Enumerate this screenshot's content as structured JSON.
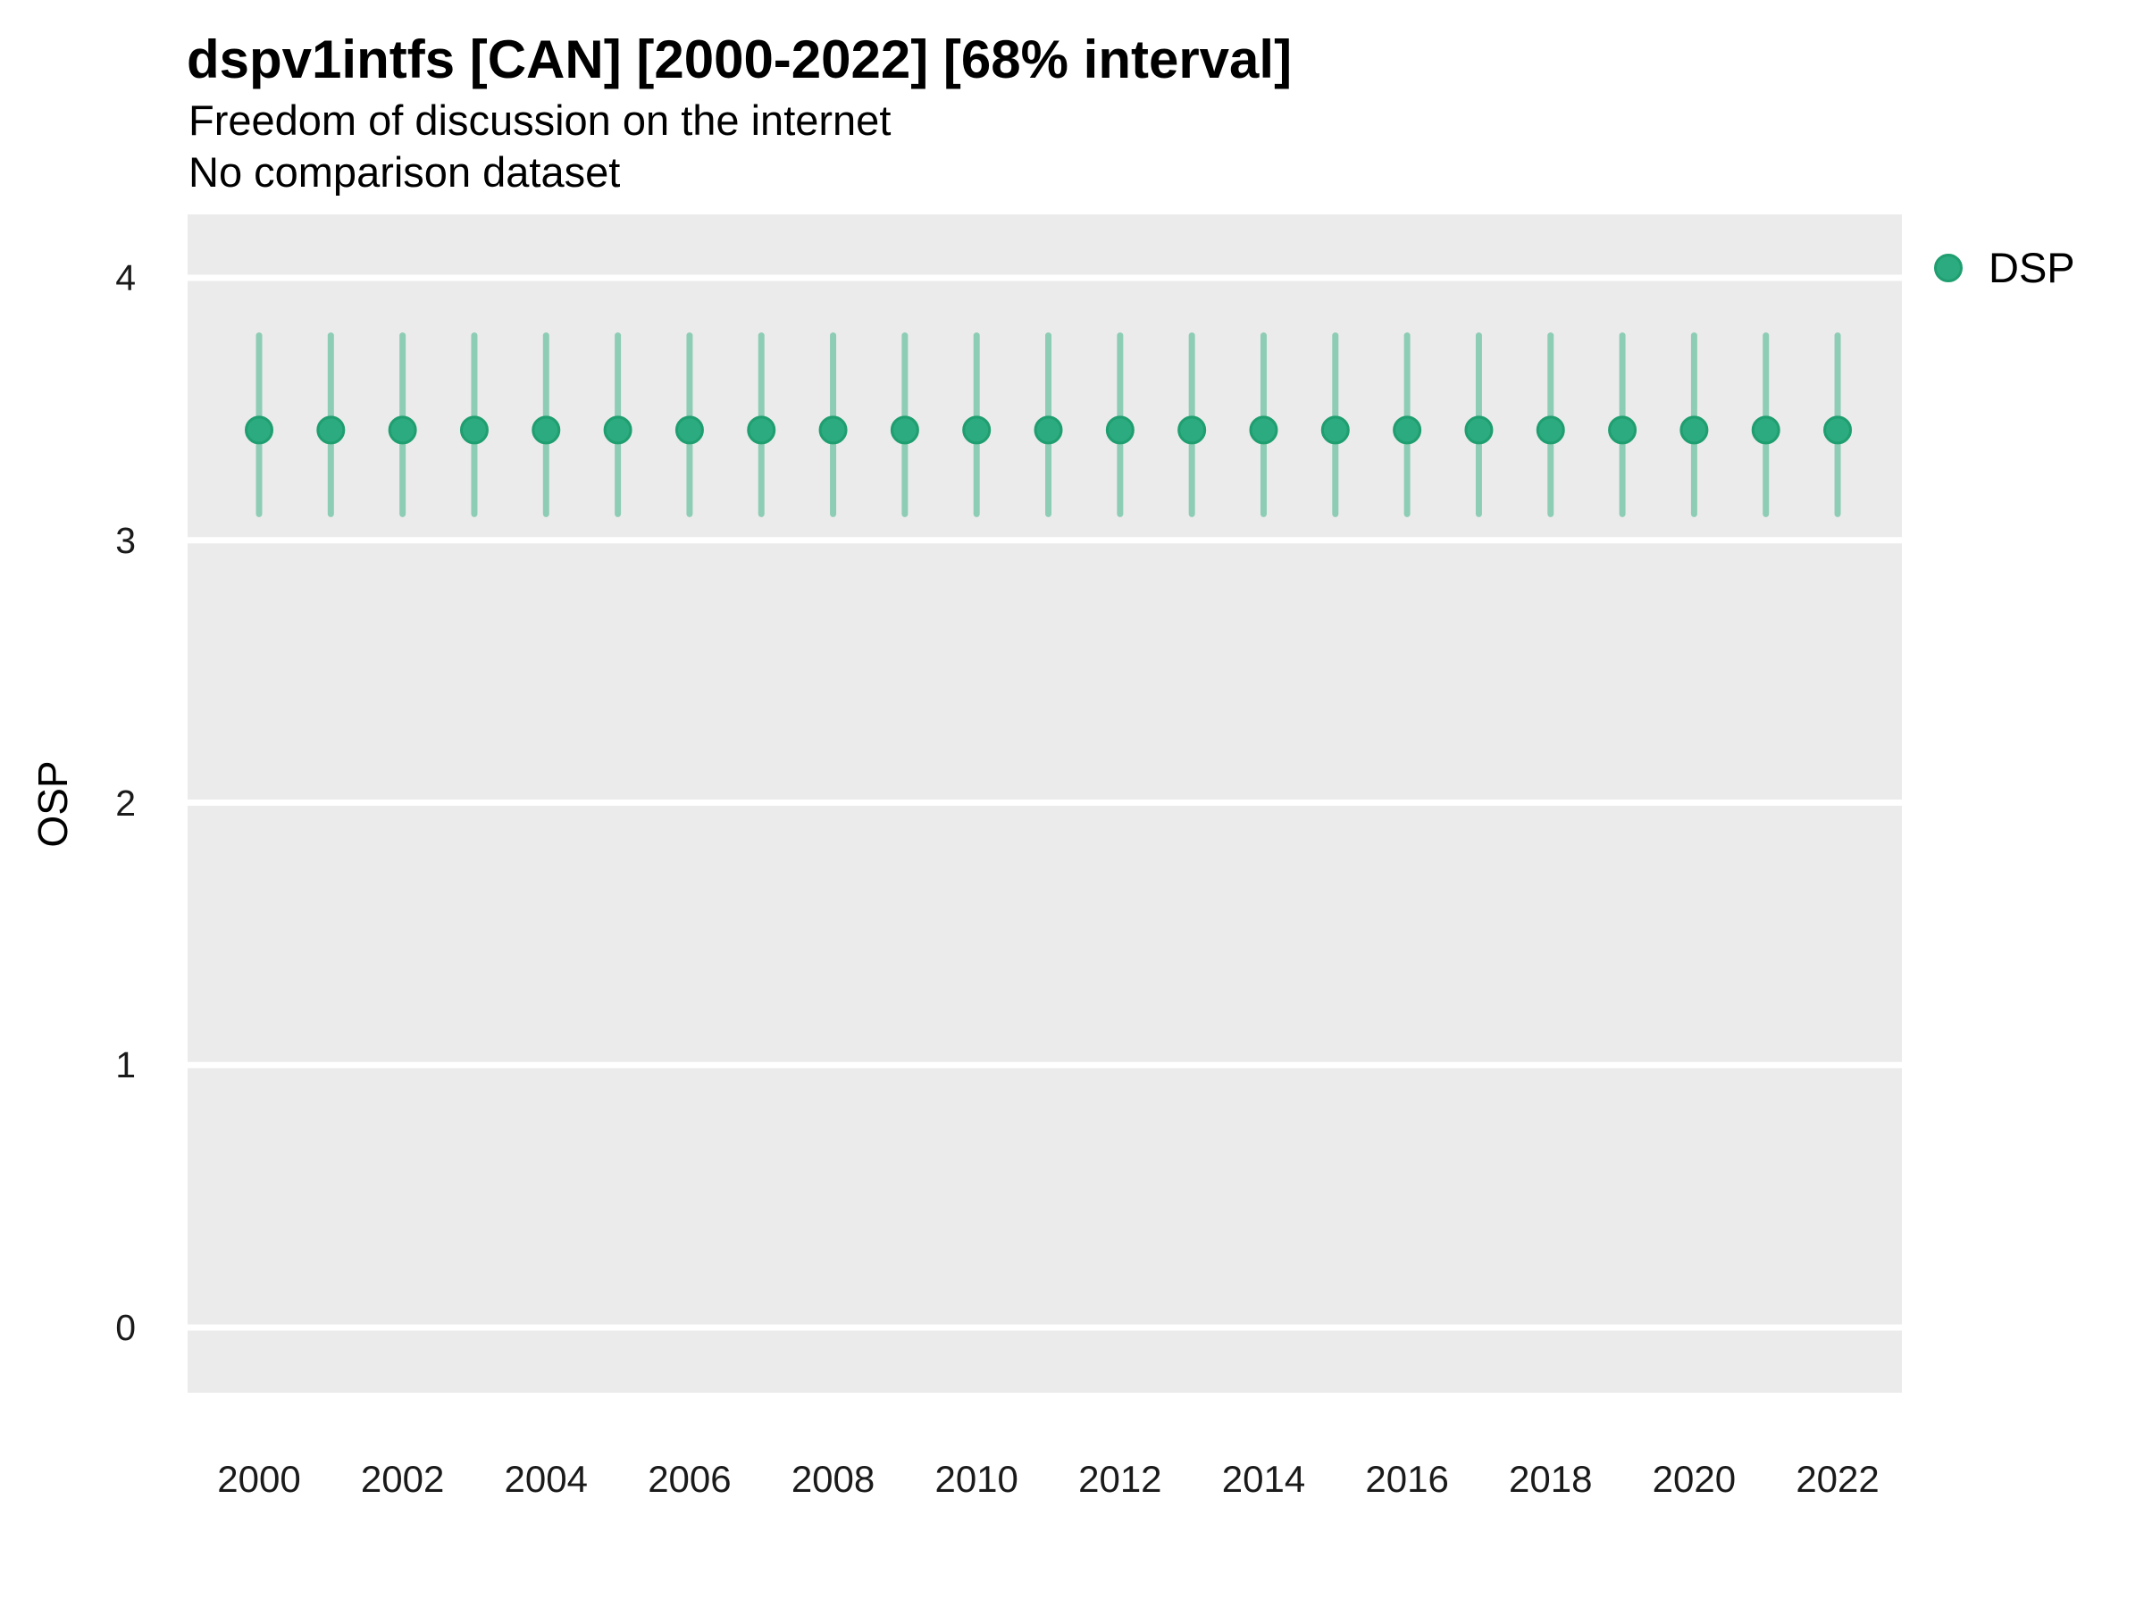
{
  "chart_data": {
    "type": "scatter",
    "title": "dspv1intfs [CAN] [2000-2022] [68% interval]",
    "subtitle": "Freedom of discussion on the internet",
    "note": "No comparison dataset",
    "ylabel": "OSP",
    "xlabel": "",
    "ylim": [
      0,
      4
    ],
    "yticks": [
      0,
      1,
      2,
      3,
      4
    ],
    "xticks": [
      2000,
      2002,
      2004,
      2006,
      2008,
      2010,
      2012,
      2014,
      2016,
      2018,
      2020,
      2022
    ],
    "grid": "major-horizontal-white",
    "panel_background": "#ebebeb",
    "gridline_color": "#ffffff",
    "legend": {
      "position": "right-top",
      "entries": [
        {
          "label": "DSP",
          "color": "#2caa80"
        }
      ]
    },
    "series": [
      {
        "name": "DSP",
        "interval": "68%",
        "point_color": "#2caa80",
        "point_border_color": "#1f9e70",
        "interval_color": "#8ecdb5",
        "x": [
          2000,
          2001,
          2002,
          2003,
          2004,
          2005,
          2006,
          2007,
          2008,
          2009,
          2010,
          2011,
          2012,
          2013,
          2014,
          2015,
          2016,
          2017,
          2018,
          2019,
          2020,
          2021,
          2022
        ],
        "median": [
          3.42,
          3.42,
          3.42,
          3.42,
          3.42,
          3.42,
          3.42,
          3.42,
          3.42,
          3.42,
          3.42,
          3.42,
          3.42,
          3.42,
          3.42,
          3.42,
          3.42,
          3.42,
          3.42,
          3.42,
          3.42,
          3.42,
          3.42
        ],
        "lower": [
          3.1,
          3.1,
          3.1,
          3.1,
          3.1,
          3.1,
          3.1,
          3.1,
          3.1,
          3.1,
          3.1,
          3.1,
          3.1,
          3.1,
          3.1,
          3.1,
          3.1,
          3.1,
          3.1,
          3.1,
          3.1,
          3.1,
          3.1
        ],
        "upper": [
          3.78,
          3.78,
          3.78,
          3.78,
          3.78,
          3.78,
          3.78,
          3.78,
          3.78,
          3.78,
          3.78,
          3.78,
          3.78,
          3.78,
          3.78,
          3.78,
          3.78,
          3.78,
          3.78,
          3.78,
          3.78,
          3.78,
          3.78
        ]
      }
    ]
  }
}
